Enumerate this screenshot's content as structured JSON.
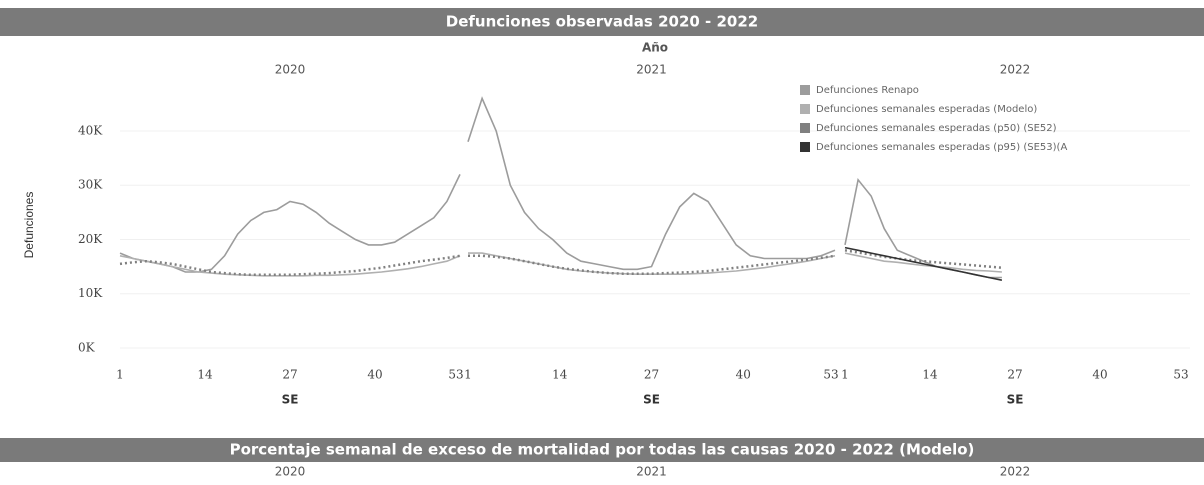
{
  "chart_data": [
    {
      "type": "line",
      "title": "Defunciones observadas 2020 - 2022",
      "panel_axis_title": "Año",
      "panels": [
        "2020",
        "2021",
        "2022"
      ],
      "ylabel": "Defunciones",
      "xlabel": "SE",
      "x": [
        1,
        3,
        5,
        7,
        9,
        11,
        13,
        15,
        17,
        19,
        21,
        23,
        25,
        27,
        29,
        31,
        33,
        35,
        37,
        39,
        41,
        43,
        45,
        47,
        49,
        51,
        53
      ],
      "xlim": [
        1,
        53
      ],
      "xticks": [
        1,
        14,
        27,
        40,
        53
      ],
      "ylim": [
        0,
        47000
      ],
      "yticks": [
        {
          "value": 0,
          "label": "0K"
        },
        {
          "value": 10000,
          "label": "10K"
        },
        {
          "value": 20000,
          "label": "20K"
        },
        {
          "value": 30000,
          "label": "30K"
        },
        {
          "value": 40000,
          "label": "40K"
        }
      ],
      "legend": "top-right",
      "series": [
        {
          "name": "Defunciones Renapo",
          "color": "#9c9c9c",
          "dash": "solid",
          "values": [
            [
              17500,
              16500,
              16000,
              15500,
              15000,
              14000,
              14000,
              14500,
              17000,
              21000,
              23500,
              25000,
              25500,
              27000,
              26500,
              25000,
              23000,
              21500,
              20000,
              19000,
              19000,
              19500,
              21000,
              22500,
              24000,
              27000,
              32000
            ],
            [
              38000,
              46000,
              40000,
              30000,
              25000,
              22000,
              20000,
              17500,
              16000,
              15500,
              15000,
              14500,
              14500,
              15000,
              21000,
              26000,
              28500,
              27000,
              23000,
              19000,
              17000,
              16500,
              16500,
              16500,
              16500,
              17000,
              18000
            ],
            [
              19000,
              31000,
              28000,
              22000,
              18000,
              17000,
              16000,
              15000,
              14500,
              14000,
              13500,
              13000,
              13000,
              null,
              null,
              null,
              null,
              null,
              null,
              null,
              null,
              null,
              null,
              null,
              null,
              null,
              null
            ]
          ]
        },
        {
          "name": "Defunciones semanales esperadas (Modelo)",
          "color": "#b0b0b0",
          "dash": "solid",
          "values": [
            [
              17000,
              16500,
              16000,
              15500,
              15000,
              14500,
              14000,
              13800,
              13600,
              13500,
              13400,
              13300,
              13300,
              13300,
              13300,
              13400,
              13400,
              13500,
              13600,
              13800,
              14000,
              14300,
              14600,
              15000,
              15500,
              16000,
              17000
            ],
            [
              17500,
              17500,
              17000,
              16500,
              16000,
              15500,
              15000,
              14500,
              14200,
              14000,
              13800,
              13700,
              13600,
              13600,
              13600,
              13600,
              13700,
              13800,
              14000,
              14200,
              14500,
              14800,
              15200,
              15600,
              16000,
              16500,
              17000
            ],
            [
              17500,
              17000,
              16500,
              16000,
              15800,
              15500,
              15200,
              15000,
              14800,
              14500,
              14300,
              14200,
              14000,
              null,
              null,
              null,
              null,
              null,
              null,
              null,
              null,
              null,
              null,
              null,
              null,
              null,
              null
            ]
          ]
        },
        {
          "name": "Defunciones semanales esperadas (p50) (SE52)",
          "color": "#808080",
          "dash": "dotted",
          "values": [
            [
              15500,
              15800,
              16000,
              15800,
              15500,
              15000,
              14500,
              14000,
              13800,
              13600,
              13500,
              13500,
              13500,
              13500,
              13600,
              13700,
              13800,
              14000,
              14200,
              14500,
              14800,
              15200,
              15600,
              16000,
              16300,
              16600,
              17000
            ],
            [
              17000,
              17000,
              16800,
              16500,
              16000,
              15500,
              15000,
              14600,
              14300,
              14000,
              13800,
              13700,
              13700,
              13700,
              13800,
              13900,
              14000,
              14200,
              14500,
              14800,
              15100,
              15400,
              15700,
              16000,
              16300,
              16600,
              17000
            ],
            [
              18000,
              17600,
              17200,
              16800,
              16500,
              16200,
              16000,
              15800,
              15600,
              15400,
              15200,
              15000,
              14800,
              null,
              null,
              null,
              null,
              null,
              null,
              null,
              null,
              null,
              null,
              null,
              null,
              null,
              null
            ]
          ]
        },
        {
          "name": "Defunciones semanales esperadas (p95) (SE53)(A",
          "color": "#333333",
          "dash": "solid",
          "values": [
            [
              null,
              null,
              null,
              null,
              null,
              null,
              null,
              null,
              null,
              null,
              null,
              null,
              null,
              null,
              null,
              null,
              null,
              null,
              null,
              null,
              null,
              null,
              null,
              null,
              null,
              null,
              null
            ],
            [
              null,
              null,
              null,
              null,
              null,
              null,
              null,
              null,
              null,
              null,
              null,
              null,
              null,
              null,
              null,
              null,
              null,
              null,
              null,
              null,
              null,
              null,
              null,
              null,
              null,
              null,
              null
            ],
            [
              18500,
              18000,
              17500,
              17000,
              16500,
              16000,
              15500,
              15000,
              14500,
              14000,
              13500,
              13000,
              12500,
              null,
              null,
              null,
              null,
              null,
              null,
              null,
              null,
              null,
              null,
              null,
              null,
              null,
              null
            ]
          ]
        }
      ]
    },
    {
      "type": "bar",
      "title": "Porcentaje semanal de exceso de mortalidad por todas las causas 2020 - 2022 (Modelo)",
      "panels": [
        "2020",
        "2021",
        "2022"
      ]
    }
  ]
}
